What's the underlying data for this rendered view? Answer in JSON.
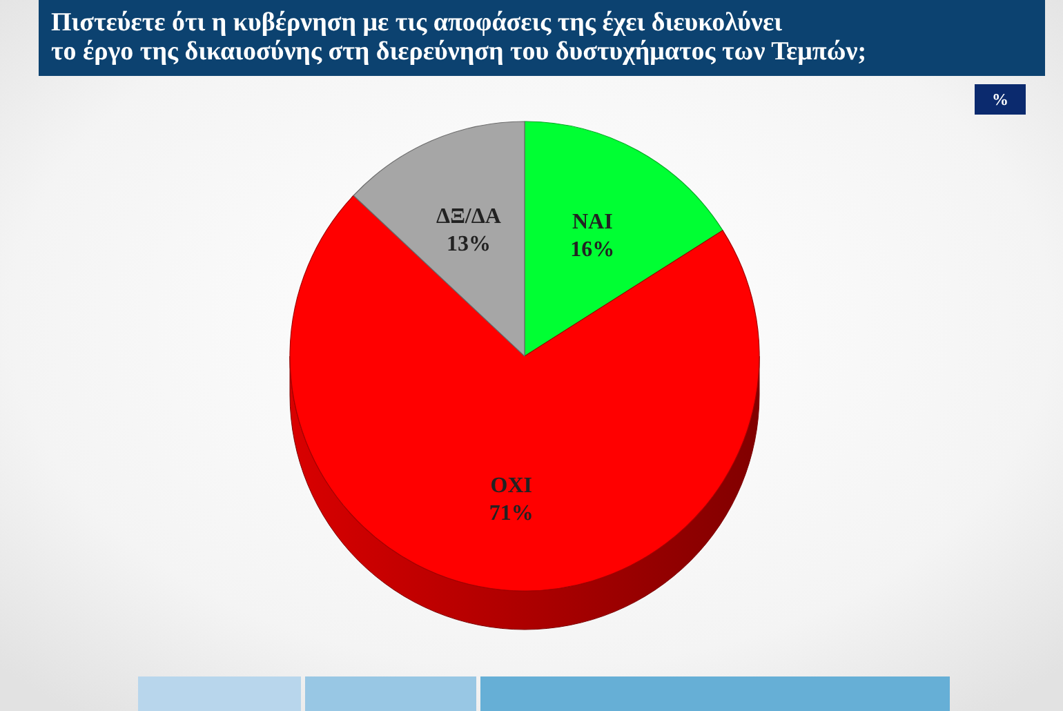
{
  "chart_data": {
    "type": "pie",
    "title": "Πιστεύετε ότι η κυβέρνηση με τις αποφάσεις της έχει διευκολύνει\nτο έργο της δικαιοσύνης στη διερεύνηση του δυστυχήματος των Τεμπών;",
    "categories": [
      "ΝΑΙ",
      "ΟΧΙ",
      "ΔΞ/ΔΑ"
    ],
    "values": [
      16,
      71,
      13
    ],
    "colors": [
      "#00ff33",
      "#ff0000",
      "#a6a6a6"
    ],
    "value_labels": [
      "16%",
      "71%",
      "13%"
    ],
    "annotations": [
      "%"
    ]
  }
}
